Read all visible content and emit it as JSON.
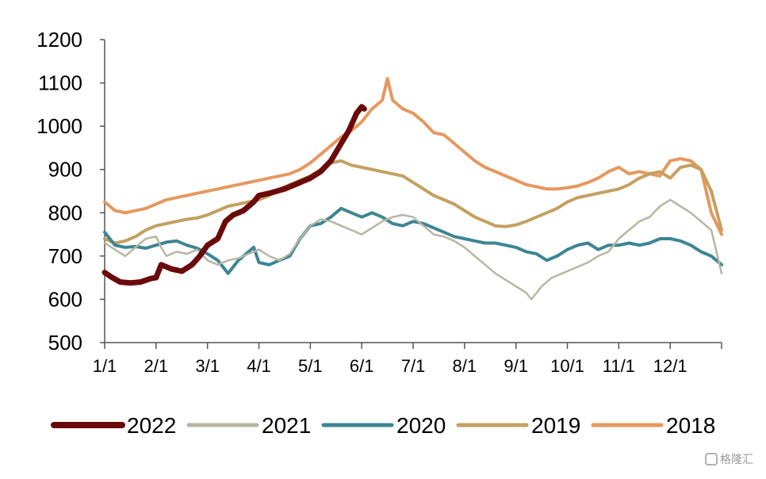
{
  "chart_data": {
    "type": "line",
    "ylim": [
      500,
      1200
    ],
    "yticks": [
      "500",
      "600",
      "700",
      "800",
      "900",
      "1000",
      "1100",
      "1200"
    ],
    "x_domain": [
      0,
      12
    ],
    "xticks": [
      {
        "label": "1/1",
        "x": 0
      },
      {
        "label": "2/1",
        "x": 1
      },
      {
        "label": "3/1",
        "x": 2
      },
      {
        "label": "4/1",
        "x": 3
      },
      {
        "label": "5/1",
        "x": 4
      },
      {
        "label": "6/1",
        "x": 5
      },
      {
        "label": "7/1",
        "x": 6
      },
      {
        "label": "8/1",
        "x": 7
      },
      {
        "label": "9/1",
        "x": 8
      },
      {
        "label": "10/1",
        "x": 9
      },
      {
        "label": "11/1",
        "x": 10
      },
      {
        "label": "12/1",
        "x": 11
      }
    ],
    "legend_position": "bottom",
    "series": [
      {
        "name": "2022",
        "color": "#6b0a0a",
        "width": 7,
        "points": [
          [
            0,
            662
          ],
          [
            0.15,
            650
          ],
          [
            0.3,
            640
          ],
          [
            0.5,
            638
          ],
          [
            0.7,
            640
          ],
          [
            0.9,
            648
          ],
          [
            1.0,
            650
          ],
          [
            1.1,
            680
          ],
          [
            1.3,
            670
          ],
          [
            1.5,
            665
          ],
          [
            1.7,
            680
          ],
          [
            1.85,
            700
          ],
          [
            2.0,
            725
          ],
          [
            2.2,
            740
          ],
          [
            2.35,
            780
          ],
          [
            2.5,
            795
          ],
          [
            2.7,
            805
          ],
          [
            2.9,
            825
          ],
          [
            3.0,
            840
          ],
          [
            3.2,
            845
          ],
          [
            3.5,
            855
          ],
          [
            3.8,
            870
          ],
          [
            4.0,
            880
          ],
          [
            4.2,
            895
          ],
          [
            4.4,
            920
          ],
          [
            4.6,
            960
          ],
          [
            4.75,
            990
          ],
          [
            4.9,
            1030
          ],
          [
            5.0,
            1045
          ],
          [
            5.05,
            1040
          ]
        ]
      },
      {
        "name": "2021",
        "color": "#b8b6a3",
        "width": 2.5,
        "points": [
          [
            0,
            730
          ],
          [
            0.2,
            715
          ],
          [
            0.4,
            700
          ],
          [
            0.6,
            720
          ],
          [
            0.8,
            740
          ],
          [
            1.0,
            745
          ],
          [
            1.1,
            720
          ],
          [
            1.2,
            700
          ],
          [
            1.4,
            710
          ],
          [
            1.6,
            705
          ],
          [
            1.8,
            715
          ],
          [
            2.0,
            690
          ],
          [
            2.2,
            680
          ],
          [
            2.4,
            690
          ],
          [
            2.6,
            695
          ],
          [
            2.8,
            705
          ],
          [
            3.0,
            715
          ],
          [
            3.2,
            700
          ],
          [
            3.4,
            690
          ],
          [
            3.6,
            705
          ],
          [
            3.8,
            740
          ],
          [
            4.0,
            770
          ],
          [
            4.2,
            785
          ],
          [
            4.4,
            780
          ],
          [
            4.6,
            770
          ],
          [
            4.8,
            760
          ],
          [
            5.0,
            750
          ],
          [
            5.2,
            765
          ],
          [
            5.4,
            780
          ],
          [
            5.6,
            790
          ],
          [
            5.8,
            795
          ],
          [
            6.0,
            790
          ],
          [
            6.2,
            770
          ],
          [
            6.4,
            750
          ],
          [
            6.6,
            745
          ],
          [
            6.8,
            735
          ],
          [
            7.0,
            720
          ],
          [
            7.2,
            700
          ],
          [
            7.4,
            680
          ],
          [
            7.6,
            660
          ],
          [
            7.8,
            645
          ],
          [
            8.0,
            630
          ],
          [
            8.2,
            615
          ],
          [
            8.3,
            600
          ],
          [
            8.5,
            630
          ],
          [
            8.7,
            650
          ],
          [
            8.9,
            660
          ],
          [
            9.0,
            665
          ],
          [
            9.2,
            675
          ],
          [
            9.4,
            685
          ],
          [
            9.6,
            700
          ],
          [
            9.8,
            710
          ],
          [
            10.0,
            740
          ],
          [
            10.2,
            760
          ],
          [
            10.4,
            780
          ],
          [
            10.6,
            790
          ],
          [
            10.8,
            815
          ],
          [
            11.0,
            830
          ],
          [
            11.2,
            815
          ],
          [
            11.4,
            800
          ],
          [
            11.6,
            780
          ],
          [
            11.8,
            760
          ],
          [
            12.0,
            660
          ]
        ]
      },
      {
        "name": "2020",
        "color": "#3d8593",
        "width": 4,
        "points": [
          [
            0,
            755
          ],
          [
            0.2,
            725
          ],
          [
            0.4,
            720
          ],
          [
            0.6,
            722
          ],
          [
            0.8,
            718
          ],
          [
            1.0,
            725
          ],
          [
            1.2,
            732
          ],
          [
            1.4,
            735
          ],
          [
            1.6,
            725
          ],
          [
            1.8,
            718
          ],
          [
            2.0,
            705
          ],
          [
            2.2,
            690
          ],
          [
            2.4,
            660
          ],
          [
            2.6,
            690
          ],
          [
            2.8,
            710
          ],
          [
            2.9,
            720
          ],
          [
            3.0,
            685
          ],
          [
            3.2,
            680
          ],
          [
            3.4,
            690
          ],
          [
            3.6,
            700
          ],
          [
            3.8,
            740
          ],
          [
            4.0,
            770
          ],
          [
            4.2,
            775
          ],
          [
            4.4,
            790
          ],
          [
            4.6,
            810
          ],
          [
            4.8,
            800
          ],
          [
            5.0,
            790
          ],
          [
            5.2,
            800
          ],
          [
            5.4,
            790
          ],
          [
            5.6,
            775
          ],
          [
            5.8,
            770
          ],
          [
            6.0,
            780
          ],
          [
            6.2,
            775
          ],
          [
            6.4,
            765
          ],
          [
            6.6,
            755
          ],
          [
            6.8,
            745
          ],
          [
            7.0,
            740
          ],
          [
            7.2,
            735
          ],
          [
            7.4,
            730
          ],
          [
            7.6,
            730
          ],
          [
            7.8,
            725
          ],
          [
            8.0,
            720
          ],
          [
            8.2,
            710
          ],
          [
            8.4,
            705
          ],
          [
            8.6,
            690
          ],
          [
            8.8,
            700
          ],
          [
            9.0,
            715
          ],
          [
            9.2,
            725
          ],
          [
            9.4,
            730
          ],
          [
            9.6,
            715
          ],
          [
            9.8,
            725
          ],
          [
            10.0,
            725
          ],
          [
            10.2,
            730
          ],
          [
            10.4,
            725
          ],
          [
            10.6,
            730
          ],
          [
            10.8,
            740
          ],
          [
            11.0,
            740
          ],
          [
            11.2,
            735
          ],
          [
            11.4,
            725
          ],
          [
            11.6,
            710
          ],
          [
            11.8,
            700
          ],
          [
            12.0,
            680
          ]
        ]
      },
      {
        "name": "2019",
        "color": "#c4a060",
        "width": 4,
        "points": [
          [
            0,
            740
          ],
          [
            0.2,
            730
          ],
          [
            0.4,
            735
          ],
          [
            0.6,
            745
          ],
          [
            0.8,
            760
          ],
          [
            1.0,
            770
          ],
          [
            1.2,
            775
          ],
          [
            1.4,
            780
          ],
          [
            1.6,
            785
          ],
          [
            1.8,
            788
          ],
          [
            2.0,
            795
          ],
          [
            2.2,
            805
          ],
          [
            2.4,
            815
          ],
          [
            2.6,
            820
          ],
          [
            2.8,
            825
          ],
          [
            3.0,
            830
          ],
          [
            3.2,
            840
          ],
          [
            3.4,
            855
          ],
          [
            3.6,
            865
          ],
          [
            3.8,
            875
          ],
          [
            4.0,
            885
          ],
          [
            4.2,
            900
          ],
          [
            4.4,
            915
          ],
          [
            4.6,
            920
          ],
          [
            4.8,
            910
          ],
          [
            5.0,
            905
          ],
          [
            5.2,
            900
          ],
          [
            5.4,
            895
          ],
          [
            5.6,
            890
          ],
          [
            5.8,
            885
          ],
          [
            6.0,
            870
          ],
          [
            6.2,
            855
          ],
          [
            6.4,
            840
          ],
          [
            6.6,
            830
          ],
          [
            6.8,
            820
          ],
          [
            7.0,
            805
          ],
          [
            7.2,
            790
          ],
          [
            7.4,
            780
          ],
          [
            7.6,
            770
          ],
          [
            7.8,
            768
          ],
          [
            8.0,
            772
          ],
          [
            8.2,
            780
          ],
          [
            8.4,
            790
          ],
          [
            8.6,
            800
          ],
          [
            8.8,
            810
          ],
          [
            9.0,
            825
          ],
          [
            9.2,
            835
          ],
          [
            9.4,
            840
          ],
          [
            9.6,
            845
          ],
          [
            9.8,
            850
          ],
          [
            10.0,
            855
          ],
          [
            10.2,
            865
          ],
          [
            10.4,
            880
          ],
          [
            10.6,
            890
          ],
          [
            10.8,
            895
          ],
          [
            11.0,
            880
          ],
          [
            11.2,
            905
          ],
          [
            11.4,
            910
          ],
          [
            11.6,
            900
          ],
          [
            11.8,
            850
          ],
          [
            12.0,
            760
          ]
        ]
      },
      {
        "name": "2018",
        "color": "#e5985f",
        "width": 4,
        "points": [
          [
            0,
            825
          ],
          [
            0.2,
            805
          ],
          [
            0.4,
            800
          ],
          [
            0.6,
            805
          ],
          [
            0.8,
            810
          ],
          [
            1.0,
            820
          ],
          [
            1.2,
            830
          ],
          [
            1.4,
            835
          ],
          [
            1.6,
            840
          ],
          [
            1.8,
            845
          ],
          [
            2.0,
            850
          ],
          [
            2.2,
            855
          ],
          [
            2.4,
            860
          ],
          [
            2.6,
            865
          ],
          [
            2.8,
            870
          ],
          [
            3.0,
            875
          ],
          [
            3.2,
            880
          ],
          [
            3.4,
            885
          ],
          [
            3.6,
            890
          ],
          [
            3.8,
            900
          ],
          [
            4.0,
            915
          ],
          [
            4.2,
            935
          ],
          [
            4.4,
            955
          ],
          [
            4.6,
            975
          ],
          [
            4.8,
            990
          ],
          [
            5.0,
            1010
          ],
          [
            5.2,
            1040
          ],
          [
            5.4,
            1060
          ],
          [
            5.5,
            1110
          ],
          [
            5.6,
            1060
          ],
          [
            5.8,
            1040
          ],
          [
            6.0,
            1030
          ],
          [
            6.2,
            1010
          ],
          [
            6.4,
            985
          ],
          [
            6.6,
            980
          ],
          [
            6.8,
            960
          ],
          [
            7.0,
            940
          ],
          [
            7.2,
            920
          ],
          [
            7.4,
            905
          ],
          [
            7.6,
            895
          ],
          [
            7.8,
            885
          ],
          [
            8.0,
            875
          ],
          [
            8.2,
            865
          ],
          [
            8.4,
            860
          ],
          [
            8.6,
            855
          ],
          [
            8.8,
            855
          ],
          [
            9.0,
            858
          ],
          [
            9.2,
            862
          ],
          [
            9.4,
            870
          ],
          [
            9.6,
            880
          ],
          [
            9.8,
            895
          ],
          [
            10.0,
            905
          ],
          [
            10.2,
            890
          ],
          [
            10.4,
            895
          ],
          [
            10.6,
            890
          ],
          [
            10.8,
            885
          ],
          [
            11.0,
            920
          ],
          [
            11.2,
            925
          ],
          [
            11.4,
            920
          ],
          [
            11.6,
            900
          ],
          [
            11.8,
            800
          ],
          [
            12.0,
            750
          ]
        ]
      }
    ]
  },
  "watermark": "格隆汇"
}
